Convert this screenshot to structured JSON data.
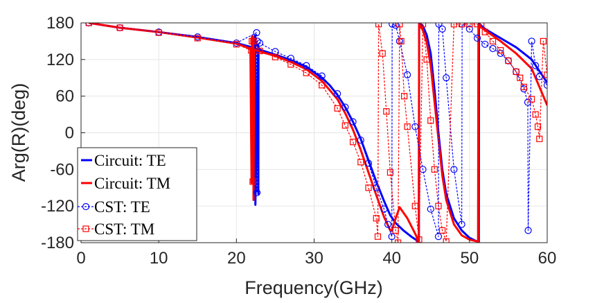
{
  "chart_data": {
    "type": "line",
    "xlabel": "Frequency(GHz)",
    "ylabel": "Arg(R)(deg)",
    "xlim": [
      0,
      60
    ],
    "ylim": [
      -180,
      180
    ],
    "xticks": [
      0,
      10,
      20,
      30,
      40,
      50,
      60
    ],
    "yticks": [
      180,
      120,
      60,
      0,
      -60,
      -120,
      -180
    ],
    "xtick_labels": [
      "0",
      "10",
      "20",
      "30",
      "40",
      "50",
      "60"
    ],
    "ytick_labels": [
      "180",
      "120",
      "60",
      "0",
      "-60",
      "-120",
      "-180"
    ],
    "grid": true,
    "legend_position": "bottom-left",
    "series": [
      {
        "name": "Circuit: TE",
        "color": "#0000ff",
        "style": "solid",
        "marker": "none",
        "x": [
          1,
          5,
          10,
          15,
          20,
          22,
          22.4,
          22.42,
          22.44,
          22.8,
          22.82,
          22.84,
          23,
          25,
          27,
          29,
          31,
          32,
          33,
          34,
          35,
          36,
          37,
          38,
          39,
          39.8,
          40.5,
          41.5,
          42.5,
          43.2,
          43.48,
          43.52,
          44,
          44.5,
          45,
          45.5,
          46,
          46.5,
          47,
          48,
          49,
          50,
          50.8,
          51.2,
          51.22,
          52,
          54,
          56,
          58,
          60
        ],
        "y": [
          180,
          172,
          165,
          157,
          147,
          140,
          137,
          160,
          -118,
          145,
          -100,
          140,
          136,
          128,
          119,
          108,
          90,
          78,
          62,
          42,
          18,
          -10,
          -45,
          -80,
          -112,
          -135,
          -148,
          -160,
          -170,
          -176,
          -179,
          180,
          175,
          160,
          130,
          70,
          0,
          -60,
          -100,
          -140,
          -160,
          -172,
          -177,
          -179,
          179,
          170,
          155,
          140,
          120,
          82
        ]
      },
      {
        "name": "Circuit: TM",
        "color": "#ff0000",
        "style": "solid",
        "marker": "none",
        "x": [
          1,
          5,
          10,
          15,
          20,
          21.8,
          21.95,
          22,
          22.05,
          22.15,
          22.2,
          22.3,
          23,
          25,
          27,
          29,
          31,
          33,
          34,
          35,
          36,
          37,
          38,
          39,
          39.8,
          40,
          40.5,
          41,
          42,
          43,
          43.48,
          43.52,
          44,
          44.5,
          45,
          45.5,
          46,
          46.5,
          47,
          48,
          49,
          50,
          51,
          51.1,
          51.15,
          52,
          54,
          56,
          58,
          60
        ],
        "y": [
          180,
          172,
          165,
          156,
          146,
          138,
          -82,
          158,
          -82,
          158,
          -110,
          136,
          133,
          126,
          116,
          104,
          85,
          55,
          32,
          5,
          -28,
          -65,
          -102,
          -138,
          -160,
          -160,
          -140,
          -122,
          -140,
          -165,
          -178,
          178,
          168,
          148,
          110,
          50,
          -10,
          -70,
          -110,
          -150,
          -168,
          -175,
          -178,
          -180,
          176,
          168,
          150,
          130,
          105,
          45
        ]
      },
      {
        "name": "CST: TE",
        "color": "#0000ff",
        "style": "dashed",
        "marker": "circle",
        "x": [
          1,
          5,
          10,
          15,
          20,
          22.6,
          22.65,
          22.7,
          23,
          25,
          27,
          29,
          31,
          33,
          34,
          35,
          36,
          37,
          38,
          39,
          39.5,
          40,
          40.05,
          40.5,
          41,
          42,
          43,
          44,
          45,
          46,
          46.05,
          46.5,
          47,
          48,
          49,
          49.05,
          50,
          51,
          52,
          53,
          54,
          55,
          56,
          57,
          57.5,
          57.55,
          58,
          58.5,
          59,
          60
        ],
        "y": [
          180,
          172,
          165,
          157,
          147,
          164,
          -98,
          150,
          147,
          133,
          122,
          110,
          93,
          64,
          42,
          18,
          -12,
          -50,
          -90,
          -125,
          -150,
          -170,
          178,
          176,
          150,
          95,
          10,
          -60,
          -125,
          -170,
          178,
          170,
          90,
          -60,
          -150,
          178,
          170,
          155,
          145,
          138,
          130,
          118,
          100,
          72,
          50,
          -160,
          150,
          110,
          92,
          78
        ]
      },
      {
        "name": "CST: TM",
        "color": "#ff0000",
        "style": "dashed",
        "marker": "square",
        "x": [
          1,
          5,
          10,
          15,
          20,
          21.9,
          22,
          22.1,
          22.2,
          23,
          25,
          27,
          29,
          31,
          33,
          34,
          35,
          36,
          37,
          38,
          38.2,
          38.3,
          38.8,
          39.3,
          39.8,
          40.5,
          40.8,
          41,
          41.2,
          41.6,
          42,
          43,
          43.5,
          44,
          44.5,
          45,
          45.5,
          46,
          46.5,
          47,
          48,
          49,
          50,
          51,
          51.5,
          52,
          53,
          54,
          55,
          56,
          56.5,
          57,
          58,
          58.5,
          58.8,
          59,
          59.5,
          60
        ],
        "y": [
          180,
          172,
          164,
          155,
          145,
          135,
          150,
          -80,
          150,
          134,
          124,
          112,
          98,
          78,
          40,
          12,
          -15,
          -48,
          -90,
          -140,
          -170,
          178,
          130,
          35,
          -65,
          -160,
          -180,
          178,
          150,
          60,
          10,
          -120,
          -175,
          178,
          120,
          20,
          -60,
          -120,
          -160,
          -178,
          178,
          178,
          178,
          178,
          176,
          165,
          150,
          135,
          118,
          100,
          90,
          75,
          55,
          30,
          10,
          -10,
          150,
          95
        ]
      }
    ]
  }
}
